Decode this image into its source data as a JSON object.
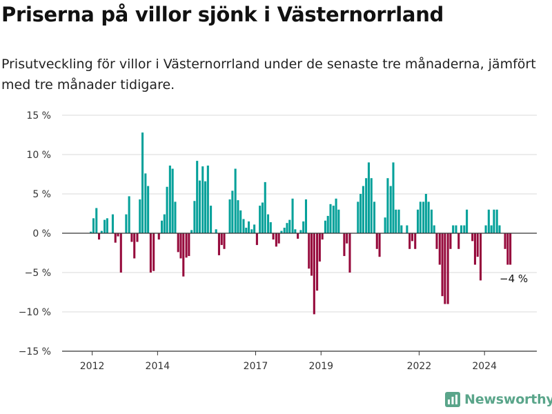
{
  "title": "Priserna på villor sjönk i Västernorrland",
  "subtitle": "Prisutveckling för villor i Västernorrland under de senaste tre månaderna, jämfört med tre månader tidigare.",
  "brand": {
    "name": "Newsworthy",
    "icon": "newsworthy-logo-icon"
  },
  "colors": {
    "positive": "#05a19a",
    "negative": "#960a3c",
    "grid": "#d9d9d9",
    "zero_line": "#333333",
    "brand": "#5aa58a"
  },
  "chart_data": {
    "type": "bar",
    "ylim": [
      -15,
      15
    ],
    "y_ticks": [
      {
        "value": 15,
        "label": "15 %"
      },
      {
        "value": 10,
        "label": "10 %"
      },
      {
        "value": 5,
        "label": "5 %"
      },
      {
        "value": 0,
        "label": "0 %"
      },
      {
        "value": -5,
        "label": "−5 %"
      },
      {
        "value": -10,
        "label": "−10 %"
      },
      {
        "value": -15,
        "label": "−15 %"
      }
    ],
    "x_ticks": [
      {
        "value": 2012,
        "label": "2012"
      },
      {
        "value": 2014,
        "label": "2014"
      },
      {
        "value": 2017,
        "label": "2017"
      },
      {
        "value": 2019,
        "label": "2019"
      },
      {
        "value": 2022,
        "label": "2022"
      },
      {
        "value": 2024,
        "label": "2024"
      }
    ],
    "x_range": [
      2011.08,
      2025.6
    ],
    "annotation": {
      "text": "−4 %"
    },
    "bars": [
      {
        "x": 2011.96,
        "value": 0.2
      },
      {
        "x": 2012.04,
        "value": 1.9
      },
      {
        "x": 2012.13,
        "value": 3.2
      },
      {
        "x": 2012.21,
        "value": -0.8
      },
      {
        "x": 2012.29,
        "value": 0.3
      },
      {
        "x": 2012.38,
        "value": 1.7
      },
      {
        "x": 2012.46,
        "value": 1.9
      },
      {
        "x": 2012.54,
        "value": 0.0
      },
      {
        "x": 2012.63,
        "value": 2.4
      },
      {
        "x": 2012.71,
        "value": -1.2
      },
      {
        "x": 2012.79,
        "value": -0.4
      },
      {
        "x": 2012.88,
        "value": -5.0
      },
      {
        "x": 2013.04,
        "value": 2.4
      },
      {
        "x": 2013.13,
        "value": 4.7
      },
      {
        "x": 2013.21,
        "value": -1.1
      },
      {
        "x": 2013.29,
        "value": -3.2
      },
      {
        "x": 2013.38,
        "value": -1.1
      },
      {
        "x": 2013.46,
        "value": 4.3
      },
      {
        "x": 2013.54,
        "value": 12.8
      },
      {
        "x": 2013.63,
        "value": 7.6
      },
      {
        "x": 2013.71,
        "value": 6.0
      },
      {
        "x": 2013.79,
        "value": -5.0
      },
      {
        "x": 2013.88,
        "value": -4.8
      },
      {
        "x": 2014.04,
        "value": -0.8
      },
      {
        "x": 2014.13,
        "value": 1.6
      },
      {
        "x": 2014.21,
        "value": 2.4
      },
      {
        "x": 2014.29,
        "value": 5.9
      },
      {
        "x": 2014.38,
        "value": 8.6
      },
      {
        "x": 2014.46,
        "value": 8.2
      },
      {
        "x": 2014.54,
        "value": 4.0
      },
      {
        "x": 2014.63,
        "value": -2.4
      },
      {
        "x": 2014.71,
        "value": -3.2
      },
      {
        "x": 2014.79,
        "value": -5.5
      },
      {
        "x": 2014.88,
        "value": -3.1
      },
      {
        "x": 2014.96,
        "value": -2.9
      },
      {
        "x": 2015.04,
        "value": 0.4
      },
      {
        "x": 2015.13,
        "value": 4.1
      },
      {
        "x": 2015.21,
        "value": 9.2
      },
      {
        "x": 2015.29,
        "value": 6.7
      },
      {
        "x": 2015.38,
        "value": 8.5
      },
      {
        "x": 2015.46,
        "value": 6.6
      },
      {
        "x": 2015.54,
        "value": 8.6
      },
      {
        "x": 2015.63,
        "value": 3.5
      },
      {
        "x": 2015.79,
        "value": 0.5
      },
      {
        "x": 2015.88,
        "value": -2.8
      },
      {
        "x": 2015.96,
        "value": -1.5
      },
      {
        "x": 2016.04,
        "value": -2.0
      },
      {
        "x": 2016.21,
        "value": 4.3
      },
      {
        "x": 2016.29,
        "value": 5.4
      },
      {
        "x": 2016.38,
        "value": 8.2
      },
      {
        "x": 2016.46,
        "value": 4.2
      },
      {
        "x": 2016.54,
        "value": 2.9
      },
      {
        "x": 2016.63,
        "value": 1.8
      },
      {
        "x": 2016.71,
        "value": 0.7
      },
      {
        "x": 2016.79,
        "value": 1.5
      },
      {
        "x": 2016.88,
        "value": 0.5
      },
      {
        "x": 2016.96,
        "value": 1.1
      },
      {
        "x": 2017.04,
        "value": -1.5
      },
      {
        "x": 2017.13,
        "value": 3.5
      },
      {
        "x": 2017.21,
        "value": 3.9
      },
      {
        "x": 2017.29,
        "value": 6.5
      },
      {
        "x": 2017.38,
        "value": 2.4
      },
      {
        "x": 2017.46,
        "value": 1.4
      },
      {
        "x": 2017.54,
        "value": -0.8
      },
      {
        "x": 2017.63,
        "value": -1.7
      },
      {
        "x": 2017.71,
        "value": -1.3
      },
      {
        "x": 2017.79,
        "value": 0.3
      },
      {
        "x": 2017.88,
        "value": 0.7
      },
      {
        "x": 2017.96,
        "value": 1.3
      },
      {
        "x": 2018.04,
        "value": 1.7
      },
      {
        "x": 2018.13,
        "value": 4.4
      },
      {
        "x": 2018.21,
        "value": 0.5
      },
      {
        "x": 2018.29,
        "value": -0.7
      },
      {
        "x": 2018.38,
        "value": 0.4
      },
      {
        "x": 2018.46,
        "value": 1.5
      },
      {
        "x": 2018.54,
        "value": 4.3
      },
      {
        "x": 2018.63,
        "value": -4.5
      },
      {
        "x": 2018.71,
        "value": -5.4
      },
      {
        "x": 2018.79,
        "value": -10.3
      },
      {
        "x": 2018.88,
        "value": -7.3
      },
      {
        "x": 2018.96,
        "value": -3.6
      },
      {
        "x": 2019.04,
        "value": -0.8
      },
      {
        "x": 2019.13,
        "value": 1.6
      },
      {
        "x": 2019.21,
        "value": 2.2
      },
      {
        "x": 2019.29,
        "value": 3.7
      },
      {
        "x": 2019.38,
        "value": 3.5
      },
      {
        "x": 2019.46,
        "value": 4.4
      },
      {
        "x": 2019.54,
        "value": 3.0
      },
      {
        "x": 2019.71,
        "value": -2.9
      },
      {
        "x": 2019.79,
        "value": -1.3
      },
      {
        "x": 2019.88,
        "value": -5.0
      },
      {
        "x": 2020.13,
        "value": 4.0
      },
      {
        "x": 2020.21,
        "value": 5.0
      },
      {
        "x": 2020.29,
        "value": 6.0
      },
      {
        "x": 2020.38,
        "value": 7.0
      },
      {
        "x": 2020.46,
        "value": 9.0
      },
      {
        "x": 2020.54,
        "value": 7.0
      },
      {
        "x": 2020.63,
        "value": 4.0
      },
      {
        "x": 2020.71,
        "value": -2.0
      },
      {
        "x": 2020.79,
        "value": -3.0
      },
      {
        "x": 2020.88,
        "value": 0.0
      },
      {
        "x": 2020.96,
        "value": 2.0
      },
      {
        "x": 2021.04,
        "value": 7.0
      },
      {
        "x": 2021.13,
        "value": 6.0
      },
      {
        "x": 2021.21,
        "value": 9.0
      },
      {
        "x": 2021.29,
        "value": 3.0
      },
      {
        "x": 2021.38,
        "value": 3.0
      },
      {
        "x": 2021.46,
        "value": 1.0
      },
      {
        "x": 2021.54,
        "value": 0.0
      },
      {
        "x": 2021.63,
        "value": 1.0
      },
      {
        "x": 2021.71,
        "value": -2.0
      },
      {
        "x": 2021.79,
        "value": -1.0
      },
      {
        "x": 2021.88,
        "value": -2.0
      },
      {
        "x": 2021.96,
        "value": 3.0
      },
      {
        "x": 2022.04,
        "value": 4.0
      },
      {
        "x": 2022.13,
        "value": 4.0
      },
      {
        "x": 2022.21,
        "value": 5.0
      },
      {
        "x": 2022.29,
        "value": 4.0
      },
      {
        "x": 2022.38,
        "value": 3.0
      },
      {
        "x": 2022.46,
        "value": 1.0
      },
      {
        "x": 2022.54,
        "value": -2.0
      },
      {
        "x": 2022.63,
        "value": -4.0
      },
      {
        "x": 2022.71,
        "value": -8.0
      },
      {
        "x": 2022.79,
        "value": -9.0
      },
      {
        "x": 2022.88,
        "value": -9.0
      },
      {
        "x": 2022.96,
        "value": -2.0
      },
      {
        "x": 2023.04,
        "value": 1.0
      },
      {
        "x": 2023.13,
        "value": 1.0
      },
      {
        "x": 2023.21,
        "value": -2.0
      },
      {
        "x": 2023.29,
        "value": 1.0
      },
      {
        "x": 2023.38,
        "value": 1.0
      },
      {
        "x": 2023.46,
        "value": 3.0
      },
      {
        "x": 2023.63,
        "value": -1.0
      },
      {
        "x": 2023.71,
        "value": -4.0
      },
      {
        "x": 2023.79,
        "value": -3.0
      },
      {
        "x": 2023.88,
        "value": -6.0
      },
      {
        "x": 2024.04,
        "value": 1.0
      },
      {
        "x": 2024.13,
        "value": 3.0
      },
      {
        "x": 2024.21,
        "value": 1.0
      },
      {
        "x": 2024.29,
        "value": 3.0
      },
      {
        "x": 2024.38,
        "value": 3.0
      },
      {
        "x": 2024.46,
        "value": 1.0
      },
      {
        "x": 2024.63,
        "value": -2.0
      },
      {
        "x": 2024.71,
        "value": -4.0
      },
      {
        "x": 2024.79,
        "value": -4.0
      }
    ]
  }
}
